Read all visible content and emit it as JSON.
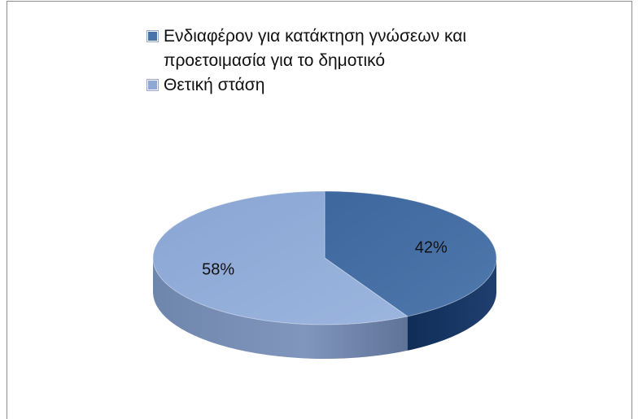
{
  "chart_data": {
    "type": "pie",
    "style": "3d",
    "categories": [
      "Ενδιαφέρον για κατάκτηση γνώσεων και προετοιμασία για το δημοτικό",
      "Θετική στάση"
    ],
    "values": [
      42,
      58
    ],
    "data_labels": [
      "42%",
      "58%"
    ],
    "colors": [
      "#4a73a8",
      "#8ea9d6"
    ],
    "legend_position": "top"
  }
}
